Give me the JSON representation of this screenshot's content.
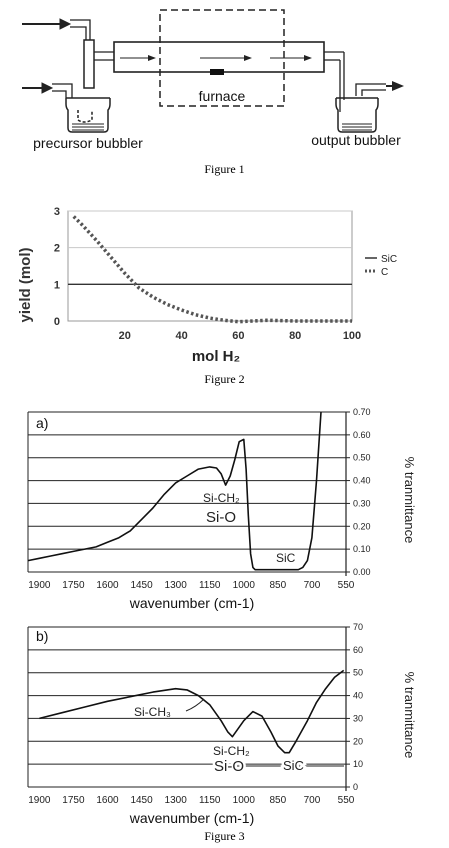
{
  "figure1": {
    "caption": "Figure 1",
    "labels": {
      "precursor": "precursor bubbler",
      "furnace": "furnace",
      "output": "output bubbler"
    }
  },
  "figure2": {
    "caption": "Figure 2",
    "chart_data": {
      "type": "line",
      "xlabel": "mol H₂",
      "ylabel": "yield (mol)",
      "xlim": [
        0,
        100
      ],
      "ylim": [
        0,
        3
      ],
      "x_ticks": [
        "20",
        "40",
        "60",
        "80",
        "100"
      ],
      "y_ticks": [
        "0",
        "1",
        "2",
        "3"
      ],
      "grid": true,
      "legend_position": "right",
      "series": [
        {
          "name": "SiC",
          "style": "solid",
          "color": "#333333",
          "x": [
            0,
            100
          ],
          "y": [
            1.0,
            1.0
          ]
        },
        {
          "name": "C",
          "style": "dotted",
          "color": "#555555",
          "x": [
            2,
            5,
            10,
            15,
            20,
            25,
            30,
            35,
            40,
            45,
            50,
            55,
            60,
            65,
            70,
            75,
            80,
            90,
            100
          ],
          "y": [
            2.85,
            2.62,
            2.2,
            1.75,
            1.3,
            0.9,
            0.65,
            0.45,
            0.3,
            0.17,
            0.08,
            0.02,
            -0.02,
            0.0,
            0.02,
            0.01,
            0.0,
            0.0,
            0.0
          ]
        }
      ]
    }
  },
  "figure3a": {
    "panel_label": "a)",
    "chart_data": {
      "type": "line",
      "xlabel": "wavenumber (cm-1)",
      "ylabel": "% tranmittance",
      "xlim": [
        1950,
        550
      ],
      "ylim": [
        0,
        0.7
      ],
      "x_ticks": [
        "1900",
        "1750",
        "1600",
        "1450",
        "1300",
        "1150",
        "1000",
        "850",
        "700",
        "550"
      ],
      "y_ticks": [
        "0.00",
        "0.10",
        "0.20",
        "0.30",
        "0.40",
        "0.50",
        "0.60",
        "0.70"
      ],
      "grid": true,
      "series": [
        {
          "color": "#111111",
          "x": [
            1950,
            1900,
            1850,
            1800,
            1750,
            1700,
            1650,
            1600,
            1550,
            1500,
            1450,
            1400,
            1350,
            1300,
            1250,
            1200,
            1150,
            1120,
            1100,
            1080,
            1060,
            1040,
            1020,
            1000,
            990,
            980,
            970,
            960,
            950,
            900,
            850,
            800,
            760,
            740,
            720,
            700,
            680,
            660
          ],
          "y": [
            0.05,
            0.06,
            0.07,
            0.08,
            0.09,
            0.1,
            0.11,
            0.13,
            0.15,
            0.18,
            0.23,
            0.28,
            0.34,
            0.39,
            0.42,
            0.45,
            0.46,
            0.455,
            0.43,
            0.38,
            0.42,
            0.49,
            0.57,
            0.58,
            0.45,
            0.25,
            0.08,
            0.02,
            0.01,
            0.01,
            0.01,
            0.01,
            0.01,
            0.02,
            0.05,
            0.15,
            0.4,
            0.7
          ]
        }
      ],
      "annotations": [
        "Si-CH₂",
        "Si-O",
        "SiC"
      ]
    }
  },
  "figure3b": {
    "panel_label": "b)",
    "caption": "Figure 3",
    "chart_data": {
      "type": "line",
      "xlabel": "wavenumber (cm-1)",
      "ylabel": "% tranmittance",
      "xlim": [
        1950,
        550
      ],
      "ylim": [
        0,
        70
      ],
      "x_ticks": [
        "1900",
        "1750",
        "1600",
        "1450",
        "1300",
        "1150",
        "1000",
        "850",
        "700",
        "550"
      ],
      "y_ticks": [
        "0",
        "10",
        "20",
        "30",
        "40",
        "50",
        "60",
        "70"
      ],
      "grid": true,
      "series": [
        {
          "color": "#111111",
          "x": [
            1900,
            1800,
            1700,
            1600,
            1500,
            1400,
            1300,
            1250,
            1200,
            1150,
            1100,
            1070,
            1050,
            1000,
            960,
            920,
            880,
            850,
            820,
            800,
            770,
            720,
            680,
            640,
            600,
            560
          ],
          "y": [
            30,
            32.5,
            35,
            37.5,
            39.5,
            41.5,
            43,
            42.5,
            40,
            36,
            29,
            24,
            22,
            29,
            33,
            31,
            24,
            18,
            15,
            15,
            20,
            29,
            37,
            43,
            48,
            51
          ]
        }
      ],
      "annotations": [
        "Si-CH₃",
        "Si-CH₂",
        "Si-O",
        "SiC"
      ]
    }
  }
}
